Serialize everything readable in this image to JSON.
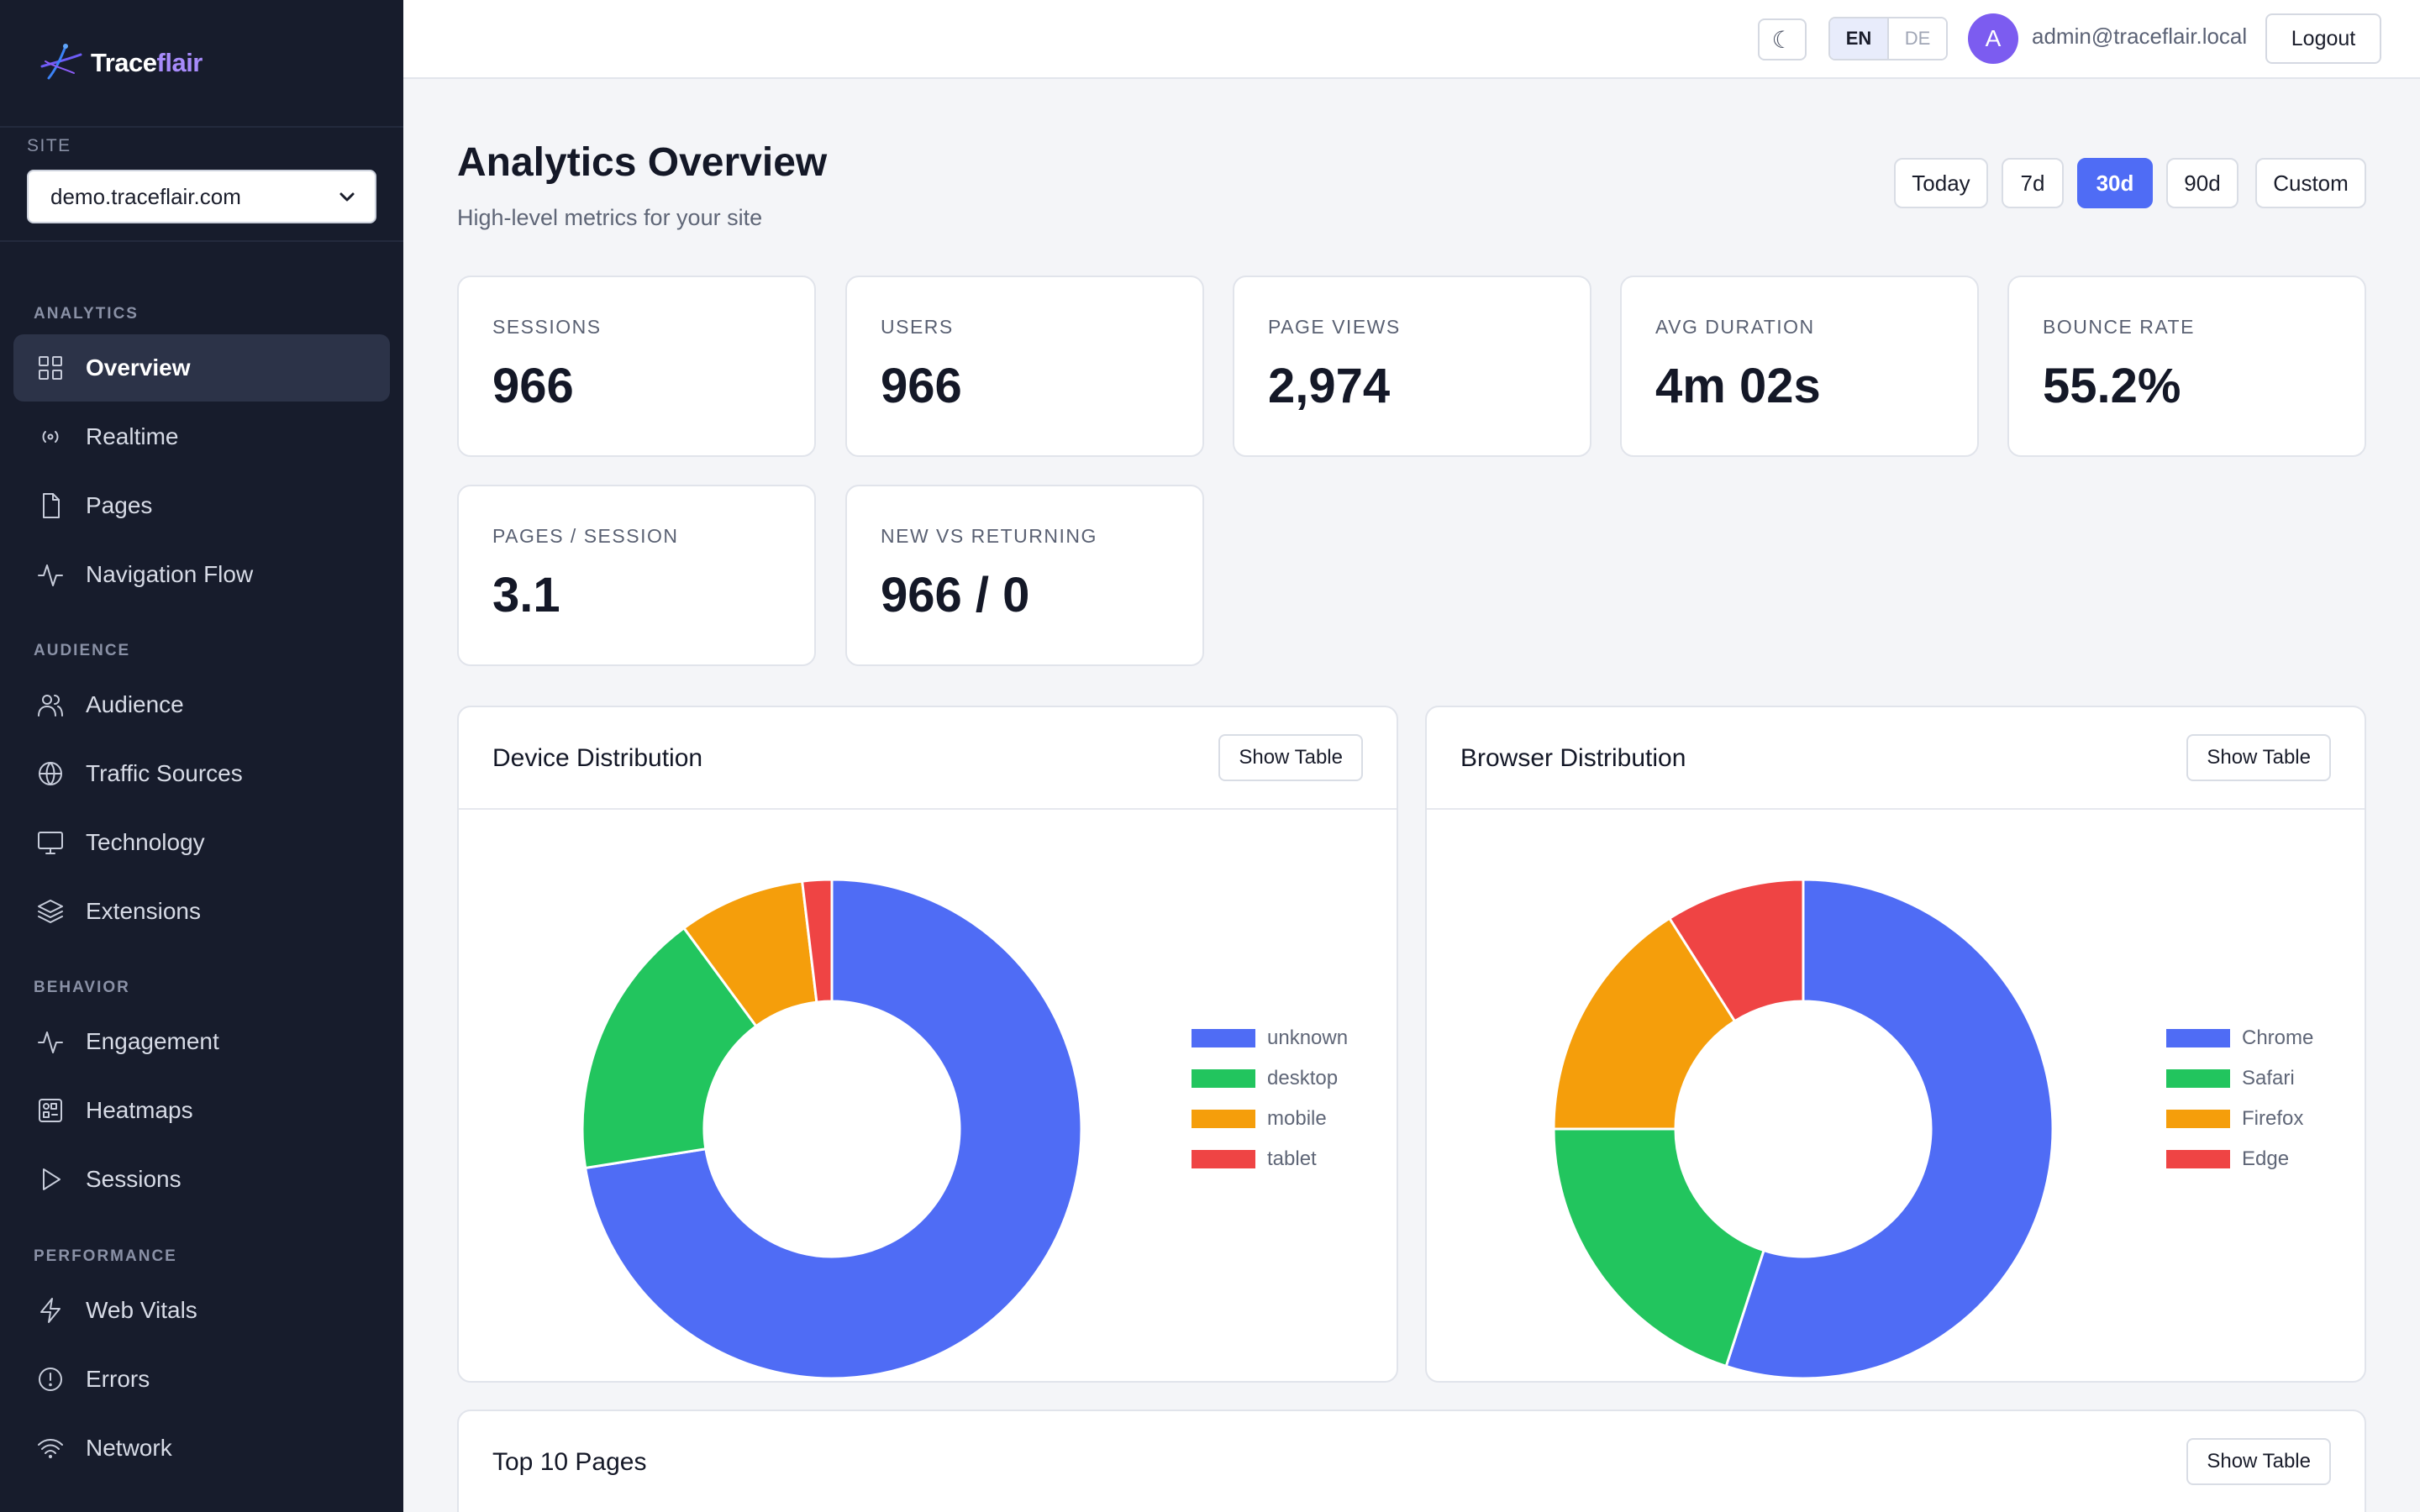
{
  "brand": {
    "prefix": "Trace",
    "suffix": "flair"
  },
  "site": {
    "label": "SITE",
    "selected": "demo.traceflair.com"
  },
  "nav": {
    "sections": [
      {
        "title": "ANALYTICS",
        "items": [
          {
            "label": "Overview",
            "icon": "grid-icon",
            "active": true
          },
          {
            "label": "Realtime",
            "icon": "broadcast-icon"
          },
          {
            "label": "Pages",
            "icon": "file-icon"
          },
          {
            "label": "Navigation Flow",
            "icon": "activity-icon"
          }
        ]
      },
      {
        "title": "AUDIENCE",
        "items": [
          {
            "label": "Audience",
            "icon": "users-icon"
          },
          {
            "label": "Traffic Sources",
            "icon": "globe-icon"
          },
          {
            "label": "Technology",
            "icon": "monitor-icon"
          },
          {
            "label": "Extensions",
            "icon": "layers-icon"
          }
        ]
      },
      {
        "title": "BEHAVIOR",
        "items": [
          {
            "label": "Engagement",
            "icon": "activity-icon"
          },
          {
            "label": "Heatmaps",
            "icon": "heatmap-icon"
          },
          {
            "label": "Sessions",
            "icon": "play-icon"
          }
        ]
      },
      {
        "title": "PERFORMANCE",
        "items": [
          {
            "label": "Web Vitals",
            "icon": "zap-icon"
          },
          {
            "label": "Errors",
            "icon": "alert-icon"
          },
          {
            "label": "Network",
            "icon": "wifi-icon"
          }
        ]
      }
    ]
  },
  "topbar": {
    "theme_icon": "☾",
    "lang_en": "EN",
    "lang_de": "DE",
    "avatar_initial": "A",
    "email": "admin@traceflair.local",
    "logout": "Logout"
  },
  "header": {
    "title": "Analytics Overview",
    "subtitle": "High-level metrics for your site"
  },
  "ranges": [
    "Today",
    "7d",
    "30d",
    "90d",
    "Custom"
  ],
  "active_range": "30d",
  "kpis": [
    {
      "label": "SESSIONS",
      "value": "966"
    },
    {
      "label": "USERS",
      "value": "966"
    },
    {
      "label": "PAGE VIEWS",
      "value": "2,974"
    },
    {
      "label": "AVG DURATION",
      "value": "4m 02s"
    },
    {
      "label": "BOUNCE RATE",
      "value": "55.2%"
    },
    {
      "label": "PAGES / SESSION",
      "value": "3.1"
    },
    {
      "label": "NEW VS RETURNING",
      "value": "966 / 0"
    }
  ],
  "panels": {
    "device_title": "Device Distribution",
    "browser_title": "Browser Distribution",
    "top_pages_title": "Top 10 Pages",
    "show_table": "Show Table"
  },
  "chart_data": [
    {
      "type": "pie",
      "title": "Device Distribution",
      "categories": [
        "unknown",
        "desktop",
        "mobile",
        "tablet"
      ],
      "values": [
        72.5,
        17.4,
        8.2,
        1.9
      ],
      "colors": [
        "#4f6cf5",
        "#22c55e",
        "#f59e0b",
        "#ef4444"
      ],
      "legend": "right"
    },
    {
      "type": "pie",
      "title": "Browser Distribution",
      "categories": [
        "Chrome",
        "Safari",
        "Firefox",
        "Edge"
      ],
      "values": [
        55.0,
        20.0,
        16.0,
        9.0
      ],
      "colors": [
        "#4f6cf5",
        "#22c55e",
        "#f59e0b",
        "#ef4444"
      ],
      "legend": "right"
    }
  ]
}
